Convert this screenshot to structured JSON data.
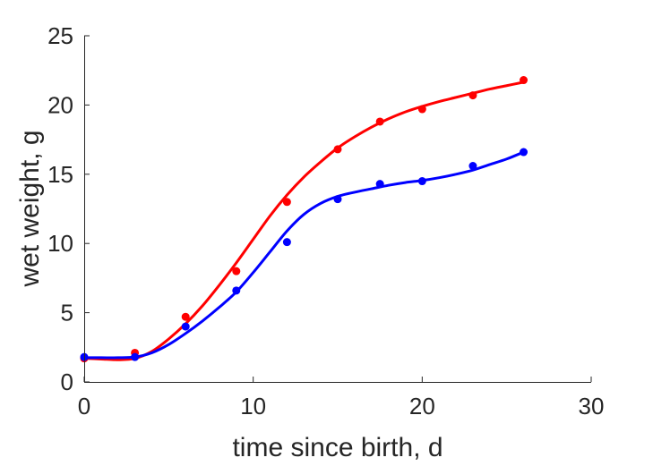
{
  "chart_data": {
    "type": "scatter",
    "xlabel": "time since birth, d",
    "ylabel": "wet weight, g",
    "xlim": [
      0,
      30
    ],
    "ylim": [
      0,
      25
    ],
    "xticks": [
      0,
      10,
      20,
      30
    ],
    "yticks": [
      0,
      5,
      10,
      15,
      20,
      25
    ],
    "xtick_labels": [
      "0",
      "10",
      "20",
      "30"
    ],
    "ytick_labels": [
      "0",
      "5",
      "10",
      "15",
      "20",
      "25"
    ],
    "grid": false,
    "legend": "none",
    "series": [
      {
        "color": "#ff0000",
        "points": {
          "x": [
            0,
            3,
            6,
            9,
            12,
            15,
            17.5,
            20,
            23,
            26
          ],
          "y": [
            1.7,
            2.1,
            4.7,
            8.0,
            13.0,
            16.8,
            18.8,
            19.7,
            20.7,
            21.8
          ]
        },
        "curve": {
          "x": [
            0,
            1,
            2,
            3,
            4,
            5,
            6,
            7,
            8,
            9,
            10,
            11,
            12,
            13,
            14,
            15,
            16,
            17,
            18,
            19,
            20,
            21,
            22,
            23,
            24,
            25,
            26
          ],
          "y": [
            1.7,
            1.65,
            1.6,
            1.7,
            2.2,
            3.1,
            4.2,
            5.5,
            7.0,
            8.6,
            10.3,
            12.0,
            13.5,
            14.8,
            15.9,
            16.9,
            17.7,
            18.4,
            19.0,
            19.5,
            19.9,
            20.25,
            20.55,
            20.85,
            21.15,
            21.4,
            21.65
          ]
        }
      },
      {
        "color": "#0000ff",
        "points": {
          "x": [
            0,
            3,
            6,
            9,
            12,
            15,
            17.5,
            20,
            23,
            26
          ],
          "y": [
            1.8,
            1.8,
            4.0,
            6.6,
            10.1,
            13.2,
            14.3,
            14.5,
            15.6,
            16.6
          ]
        },
        "curve": {
          "x": [
            0,
            1,
            2,
            3,
            4,
            5,
            6,
            7,
            8,
            9,
            10,
            11,
            12,
            13,
            14,
            15,
            16,
            17,
            18,
            19,
            20,
            21,
            22,
            23,
            24,
            25,
            26
          ],
          "y": [
            1.75,
            1.75,
            1.75,
            1.8,
            2.1,
            2.7,
            3.5,
            4.4,
            5.4,
            6.5,
            7.9,
            9.4,
            10.9,
            12.1,
            12.9,
            13.4,
            13.7,
            13.95,
            14.2,
            14.4,
            14.55,
            14.75,
            15.0,
            15.3,
            15.7,
            16.1,
            16.6
          ]
        }
      }
    ]
  }
}
